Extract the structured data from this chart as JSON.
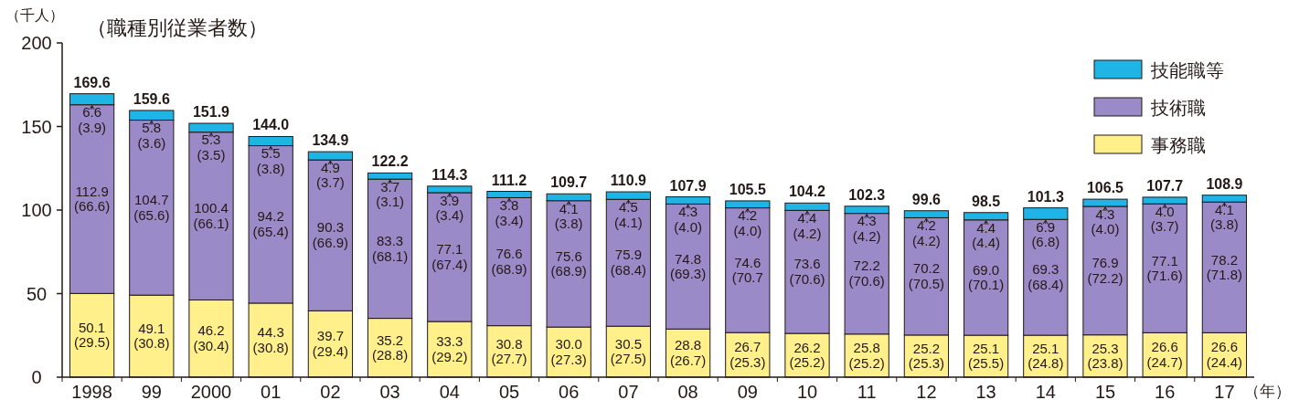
{
  "chart_data": {
    "type": "bar",
    "stacked": true,
    "title": "（職種別従業者数）",
    "ylabel": "（千人）",
    "xlabel": "（年）",
    "categories": [
      "1998",
      "99",
      "2000",
      "01",
      "02",
      "03",
      "04",
      "05",
      "06",
      "07",
      "08",
      "09",
      "10",
      "11",
      "12",
      "13",
      "14",
      "15",
      "16",
      "17"
    ],
    "ylim": [
      0,
      200
    ],
    "yticks": [
      0,
      50,
      100,
      150,
      200
    ],
    "grid": false,
    "legend": "top right",
    "series": [
      {
        "name": "事務職",
        "color": "#fff08c",
        "values": [
          50.1,
          49.1,
          46.2,
          44.3,
          39.7,
          35.2,
          33.3,
          30.8,
          30.0,
          30.5,
          28.8,
          26.7,
          26.2,
          25.8,
          25.2,
          25.1,
          25.1,
          25.3,
          26.6,
          26.6
        ],
        "value_labels": [
          "50.1\n(29.5)",
          "49.1\n(30.8)",
          "46.2\n(30.4)",
          "44.3\n(30.8)",
          "39.7\n(29.4)",
          "35.2\n(28.8)",
          "33.3\n(29.2)",
          "30.8\n(27.7)",
          "30.0\n(27.3)",
          "30.5\n(27.5)",
          "28.8\n(26.7)",
          "26.7\n(25.3)",
          "26.2\n(25.2)",
          "25.8\n(25.2)",
          "25.2\n(25.3)",
          "25.1\n(25.5)",
          "25.1\n(24.8)",
          "25.3\n(23.8)",
          "26.6\n(24.7)",
          "26.6\n(24.4)"
        ]
      },
      {
        "name": "技術職",
        "color": "#9b8ac8",
        "values": [
          112.9,
          104.7,
          100.4,
          94.2,
          90.3,
          83.3,
          77.1,
          76.6,
          75.6,
          75.9,
          74.8,
          74.6,
          73.6,
          72.2,
          70.2,
          69.0,
          69.3,
          76.9,
          77.1,
          78.2
        ],
        "value_labels": [
          "112.9\n(66.6)",
          "104.7\n(65.6)",
          "100.4\n(66.1)",
          "94.2\n(65.4)",
          "90.3\n(66.9)",
          "83.3\n(68.1)",
          "77.1\n(67.4)",
          "76.6\n(68.9)",
          "75.6\n(68.9)",
          "75.9\n(68.4)",
          "74.8\n(69.3)",
          "74.6\n(70.7",
          "73.6\n(70.6)",
          "72.2\n(70.6)",
          "70.2\n(70.5)",
          "69.0\n(70.1)",
          "69.3\n(68.4)",
          "76.9\n(72.2)",
          "77.1\n(71.6)",
          "78.2\n(71.8)"
        ]
      },
      {
        "name": "技能職等",
        "color": "#1eb4e6",
        "values": [
          6.6,
          5.8,
          5.3,
          5.5,
          4.9,
          3.7,
          3.9,
          3.8,
          4.1,
          4.5,
          4.3,
          4.2,
          4.4,
          4.3,
          4.2,
          4.4,
          6.9,
          4.3,
          4.0,
          4.1
        ],
        "value_labels": [
          "6.6\n(3.9)",
          "5.8\n(3.6)",
          "5.3\n(3.5)",
          "5.5\n(3.8)",
          "4.9\n(3.7)",
          "3.7\n(3.1)",
          "3.9\n(3.4)",
          "3.8\n(3.4)",
          "4.1\n(3.8)",
          "4.5\n(4.1)",
          "4.3\n(4.0)",
          "4.2\n(4.0)",
          "4.4\n(4.2)",
          "4.3\n(4.2)",
          "4.2\n(4.2)",
          "4.4\n(4.4)",
          "6.9\n(6.8)",
          "4.3\n(4.0)",
          "4.0\n(3.7)",
          "4.1\n(3.8)"
        ]
      }
    ],
    "totals": [
      "169.6",
      "159.6",
      "151.9",
      "144.0",
      "134.9",
      "122.2",
      "114.3",
      "111.2",
      "109.7",
      "110.9",
      "107.9",
      "105.5",
      "104.2",
      "102.3",
      "99.6",
      "98.5",
      "101.3",
      "106.5",
      "107.7",
      "108.9"
    ]
  }
}
